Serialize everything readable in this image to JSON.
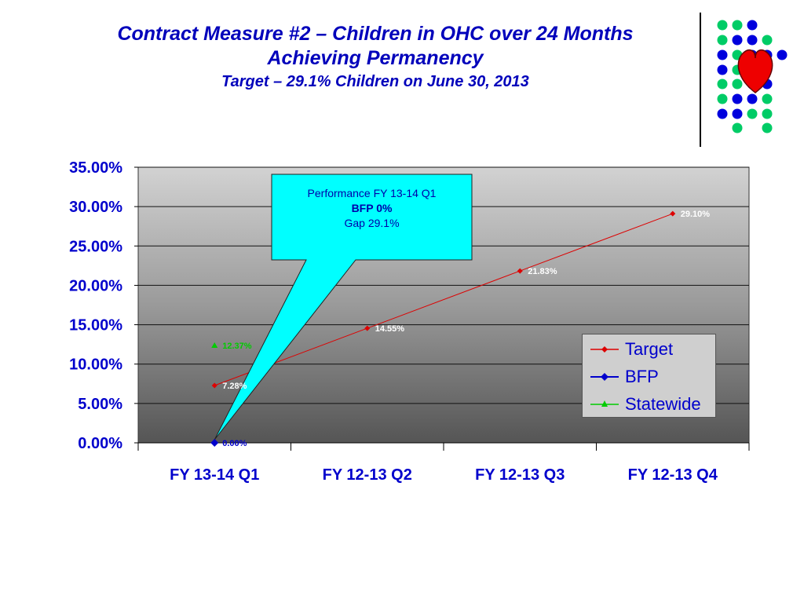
{
  "title": {
    "line1": "Contract Measure #2 – Children in OHC over 24 Months",
    "line2": "Achieving Permanency",
    "line3": "Target – 29.1% Children on June 30, 2013"
  },
  "callout": {
    "line1": "Performance FY 13-14 Q1",
    "line2": "BFP 0%",
    "line3": "Gap 29.1%"
  },
  "colors": {
    "title": "#0000bb",
    "target": "#dd0000",
    "bfp": "#0000cc",
    "statewide": "#00cc00",
    "callout_fill": "#00ffff",
    "dot_green": "#00cc66",
    "dot_blue": "#0000dd",
    "heart": "#ee0000"
  },
  "chart_data": {
    "type": "line",
    "categories": [
      "FY 13-14 Q1",
      "FY 12-13 Q2",
      "FY 12-13 Q3",
      "FY 12-13 Q4"
    ],
    "ylim": [
      0,
      35
    ],
    "y_ticks": [
      "0.00%",
      "5.00%",
      "10.00%",
      "15.00%",
      "20.00%",
      "25.00%",
      "30.00%",
      "35.00%"
    ],
    "grid": true,
    "legend_position": "right",
    "series": [
      {
        "name": "Target",
        "values": [
          7.28,
          14.55,
          21.83,
          29.1
        ],
        "labels": [
          "7.28%",
          "14.55%",
          "21.83%",
          "29.10%"
        ],
        "marker": "diamond"
      },
      {
        "name": "BFP",
        "values": [
          0.0,
          null,
          null,
          null
        ],
        "labels": [
          "0.00%",
          null,
          null,
          null
        ],
        "marker": "diamond"
      },
      {
        "name": "Statewide",
        "values": [
          12.37,
          null,
          null,
          null
        ],
        "labels": [
          "12.37%",
          null,
          null,
          null
        ],
        "marker": "triangle"
      }
    ]
  }
}
